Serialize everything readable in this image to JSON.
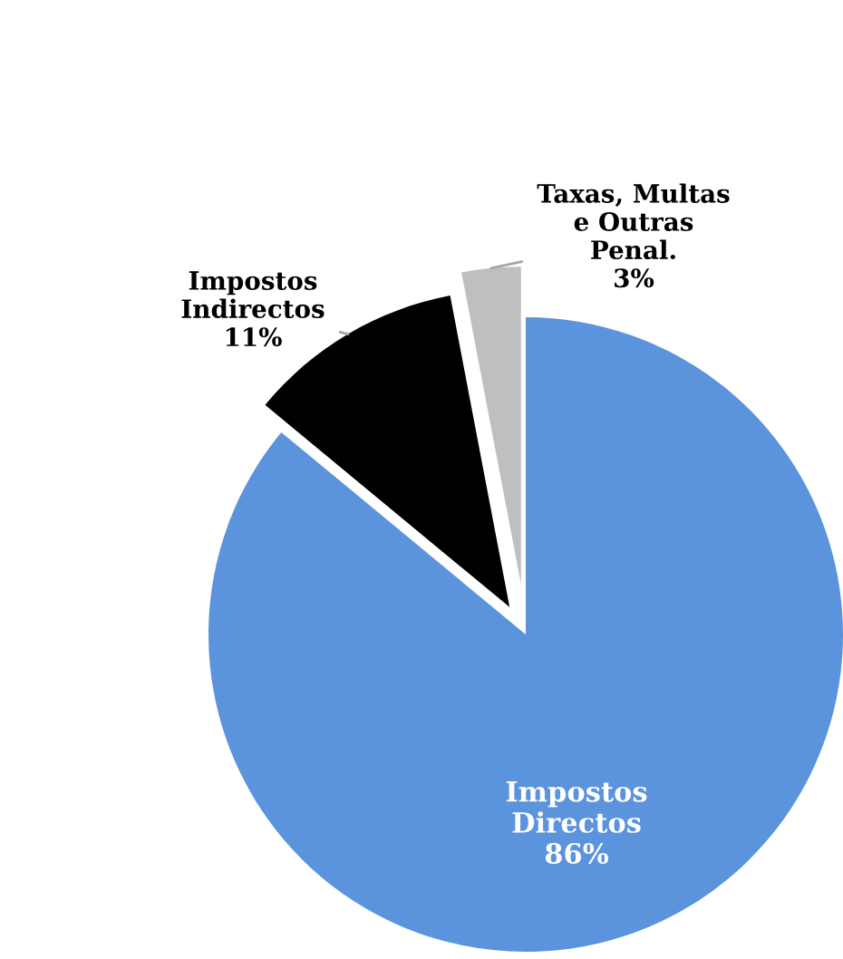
{
  "chart_data": {
    "type": "pie",
    "categories": [
      "Impostos\nDirectos",
      "Impostos\nIndirectos",
      "Taxas, Multas\ne Outras\nPenal."
    ],
    "values": [
      86,
      11,
      3
    ],
    "value_labels": [
      "86%",
      "11%",
      "3%"
    ],
    "colors": [
      "#5b93dc",
      "#000000",
      "#bfbfbf"
    ],
    "legend": false
  }
}
